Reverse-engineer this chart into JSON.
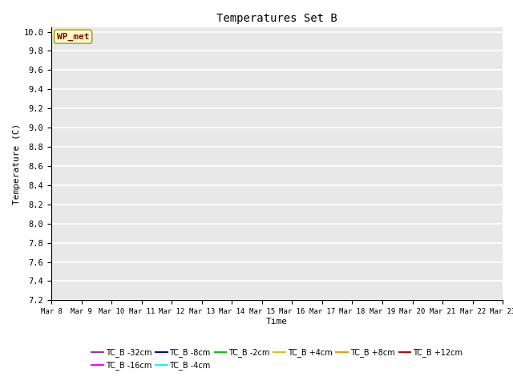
{
  "title": "Temperatures Set B",
  "xlabel": "Time",
  "ylabel": "Temperature (C)",
  "ylim": [
    7.2,
    10.05
  ],
  "yticks": [
    7.2,
    7.4,
    7.6,
    7.8,
    8.0,
    8.2,
    8.4,
    8.6,
    8.8,
    9.0,
    9.2,
    9.4,
    9.6,
    9.8,
    10.0
  ],
  "series_colors": {
    "TC_B -32cm": "#9933cc",
    "TC_B -16cm": "#ff00ff",
    "TC_B -8cm": "#0000cc",
    "TC_B -4cm": "#00ffff",
    "TC_B -2cm": "#00cc00",
    "TC_B +4cm": "#cccc00",
    "TC_B +8cm": "#ff9900",
    "TC_B +12cm": "#cc0000"
  },
  "wp_met_box_color": "#ffffcc",
  "wp_met_text_color": "#8b0000",
  "background_color": "#e8e8e8",
  "grid_color": "#ffffff"
}
